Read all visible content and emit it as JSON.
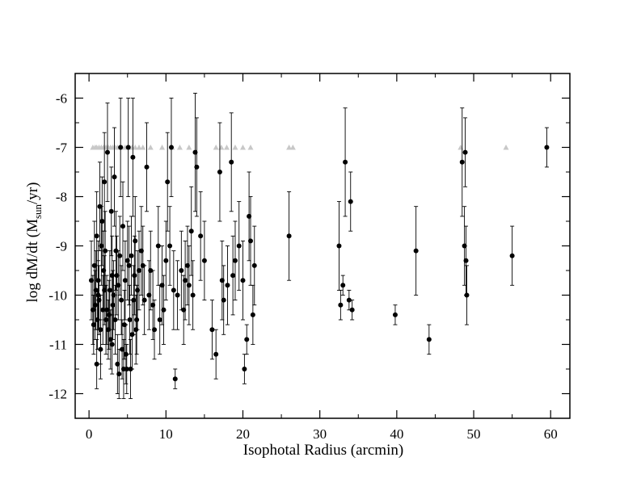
{
  "chart_data": {
    "type": "scatter",
    "title": "",
    "xlabel": "Isophotal Radius (arcmin)",
    "ylabel_prefix": "log dM/dt (M",
    "ylabel_sub": "sun",
    "ylabel_suffix": "/yr)",
    "xlim": [
      -1.8,
      62.5
    ],
    "ylim": [
      -12.5,
      -5.5
    ],
    "xticks": [
      0,
      10,
      20,
      30,
      40,
      50,
      60
    ],
    "yticks": [
      -12,
      -11,
      -10,
      -9,
      -8,
      -7,
      -6
    ],
    "grid": false,
    "legend": "none",
    "colors": {
      "points": "#000000",
      "limits": "#c8c8c8",
      "axes": "#000000"
    },
    "series": [
      {
        "marker": "filled-circle-with-errorbars",
        "x": [
          0.3,
          0.5,
          0.6,
          0.7,
          0.8,
          0.9,
          1.0,
          1.0,
          1.1,
          1.2,
          1.2,
          1.3,
          1.4,
          1.5,
          1.5,
          1.6,
          1.7,
          1.8,
          1.9,
          2.0,
          2.0,
          2.1,
          2.2,
          2.3,
          2.4,
          2.5,
          2.6,
          2.7,
          2.8,
          2.9,
          3.0,
          3.0,
          3.1,
          3.2,
          3.3,
          3.4,
          3.5,
          3.6,
          3.7,
          3.8,
          3.9,
          4.0,
          4.1,
          4.2,
          4.3,
          4.4,
          4.5,
          4.6,
          4.7,
          4.8,
          4.9,
          5.0,
          5.1,
          5.2,
          5.3,
          5.4,
          5.5,
          5.6,
          5.7,
          5.8,
          5.9,
          6.0,
          6.1,
          6.2,
          6.3,
          6.5,
          6.8,
          7.0,
          7.2,
          7.5,
          7.8,
          8.0,
          8.3,
          8.5,
          9.0,
          9.2,
          9.5,
          9.7,
          10.0,
          10.2,
          10.5,
          10.7,
          11.0,
          11.2,
          11.5,
          12.0,
          12.3,
          12.5,
          12.8,
          13.0,
          13.3,
          13.5,
          13.8,
          14.0,
          14.5,
          15.0,
          16.0,
          16.5,
          17.0,
          17.3,
          17.5,
          18.0,
          18.5,
          18.7,
          19.0,
          19.5,
          20.0,
          20.2,
          20.5,
          20.8,
          21.0,
          21.3,
          21.5,
          26.0,
          32.5,
          32.7,
          33.0,
          33.3,
          33.8,
          34.0,
          34.2,
          39.8,
          42.5,
          44.2,
          48.5,
          48.8,
          48.9,
          49.0,
          49.1,
          55.0,
          59.5
        ],
        "y": [
          -9.7,
          -10.3,
          -10.6,
          -9.4,
          -10.2,
          -9.9,
          -11.4,
          -8.8,
          -10.5,
          -10.0,
          -9.7,
          -10.1,
          -8.2,
          -11.1,
          -10.7,
          -9.0,
          -8.5,
          -10.3,
          -9.5,
          -9.9,
          -7.7,
          -9.1,
          -10.5,
          -10.3,
          -7.1,
          -10.7,
          -10.4,
          -9.9,
          -10.9,
          -8.3,
          -9.6,
          -11.0,
          -10.2,
          -10.0,
          -7.6,
          -10.5,
          -9.1,
          -9.6,
          -11.4,
          -9.8,
          -11.6,
          -9.2,
          -7.0,
          -10.1,
          -11.1,
          -8.6,
          -11.5,
          -10.6,
          -9.7,
          -11.2,
          -11.5,
          -9.3,
          -7.0,
          -9.4,
          -10.5,
          -11.5,
          -9.2,
          -10.8,
          -7.2,
          -10.1,
          -9.6,
          -8.9,
          -10.7,
          -10.5,
          -9.9,
          -9.5,
          -9.1,
          -9.4,
          -10.1,
          -7.4,
          -10.0,
          -9.5,
          -10.2,
          -10.7,
          -9.0,
          -10.5,
          -9.8,
          -10.3,
          -9.3,
          -7.7,
          -9.0,
          -7.0,
          -9.9,
          -11.7,
          -10.0,
          -9.5,
          -10.3,
          -9.7,
          -9.4,
          -9.8,
          -8.7,
          -10.0,
          -7.1,
          -7.4,
          -8.8,
          -9.3,
          -10.7,
          -11.2,
          -7.5,
          -9.7,
          -10.1,
          -9.8,
          -7.3,
          -9.6,
          -9.3,
          -9.0,
          -9.7,
          -11.5,
          -10.9,
          -8.4,
          -8.9,
          -10.4,
          -9.4,
          -8.8,
          -9.0,
          -10.2,
          -9.8,
          -7.3,
          -10.1,
          -8.1,
          -10.3,
          -10.4,
          -9.1,
          -10.9,
          -7.3,
          -9.0,
          -7.1,
          -9.3,
          -10.0,
          -9.2,
          -7.0
        ],
        "err": [
          0.8,
          0.7,
          0.6,
          0.9,
          0.7,
          0.8,
          0.5,
          0.9,
          0.6,
          0.7,
          0.8,
          0.7,
          0.9,
          0.6,
          0.7,
          0.8,
          0.9,
          0.7,
          0.8,
          0.7,
          1.0,
          0.8,
          0.7,
          0.7,
          1.0,
          0.6,
          0.7,
          0.8,
          0.6,
          0.9,
          0.8,
          0.6,
          0.7,
          0.7,
          1.0,
          0.7,
          0.8,
          0.8,
          0.6,
          0.7,
          0.5,
          0.8,
          1.0,
          0.7,
          0.6,
          0.9,
          0.6,
          0.7,
          0.8,
          0.6,
          0.5,
          0.8,
          1.0,
          0.8,
          0.7,
          0.6,
          0.8,
          0.7,
          1.2,
          0.7,
          0.8,
          0.9,
          0.7,
          0.7,
          0.8,
          0.8,
          0.9,
          0.8,
          0.7,
          0.9,
          0.7,
          0.8,
          0.7,
          0.6,
          0.8,
          0.7,
          0.8,
          0.7,
          0.8,
          1.0,
          0.8,
          1.0,
          0.8,
          0.2,
          0.7,
          0.8,
          0.7,
          0.8,
          0.8,
          0.8,
          0.9,
          0.7,
          1.2,
          1.0,
          0.9,
          0.8,
          0.6,
          0.5,
          1.0,
          0.8,
          0.7,
          0.8,
          1.0,
          0.8,
          0.8,
          0.9,
          0.8,
          0.3,
          0.3,
          0.9,
          0.9,
          0.6,
          0.8,
          0.9,
          0.9,
          0.3,
          0.2,
          1.1,
          0.2,
          0.6,
          0.2,
          0.2,
          0.9,
          0.3,
          1.1,
          0.8,
          0.7,
          0.7,
          0.6,
          0.6,
          0.4
        ],
        "upper_limit_markers_x": [
          0.5,
          0.8,
          1.0,
          1.3,
          1.6,
          1.9,
          2.2,
          2.5,
          2.8,
          3.1,
          3.4,
          3.7,
          4.0,
          4.3,
          4.7,
          5.0,
          5.3,
          5.6,
          6.0,
          6.5,
          7.0,
          8.0,
          9.5,
          10.8,
          11.8,
          13.0,
          16.5,
          17.2,
          17.9,
          19.0,
          20.0,
          21.0,
          26.0,
          26.5,
          48.3,
          54.2
        ],
        "upper_limit_markers_y": -7.0
      }
    ]
  }
}
